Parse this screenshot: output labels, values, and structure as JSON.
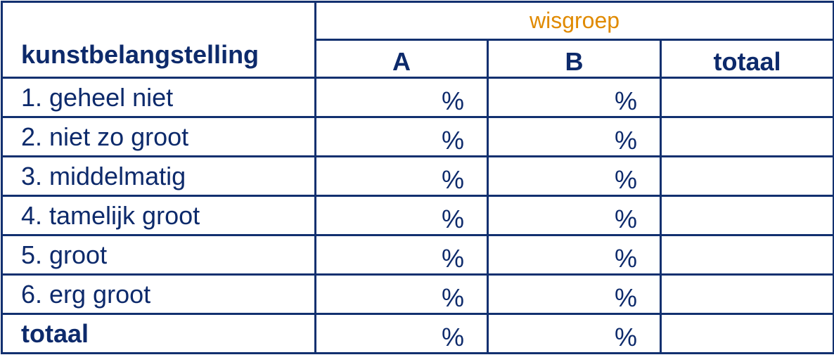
{
  "table": {
    "header": {
      "title": "kunstbelangstelling",
      "group": "wisgroep",
      "columns": [
        "A",
        "B",
        "totaal"
      ]
    },
    "rows": [
      [
        "1. geheel niet",
        "%",
        "%"
      ],
      [
        "2. niet zo groot",
        "%",
        "%"
      ],
      [
        "3. middelmatig",
        "%",
        "%"
      ],
      [
        "4. tamelijk groot",
        "%",
        "%"
      ],
      [
        "5. groot",
        "%",
        "%"
      ],
      [
        "6. erg groot",
        "%",
        "%"
      ],
      [
        "totaal",
        "%",
        "%"
      ]
    ]
  }
}
